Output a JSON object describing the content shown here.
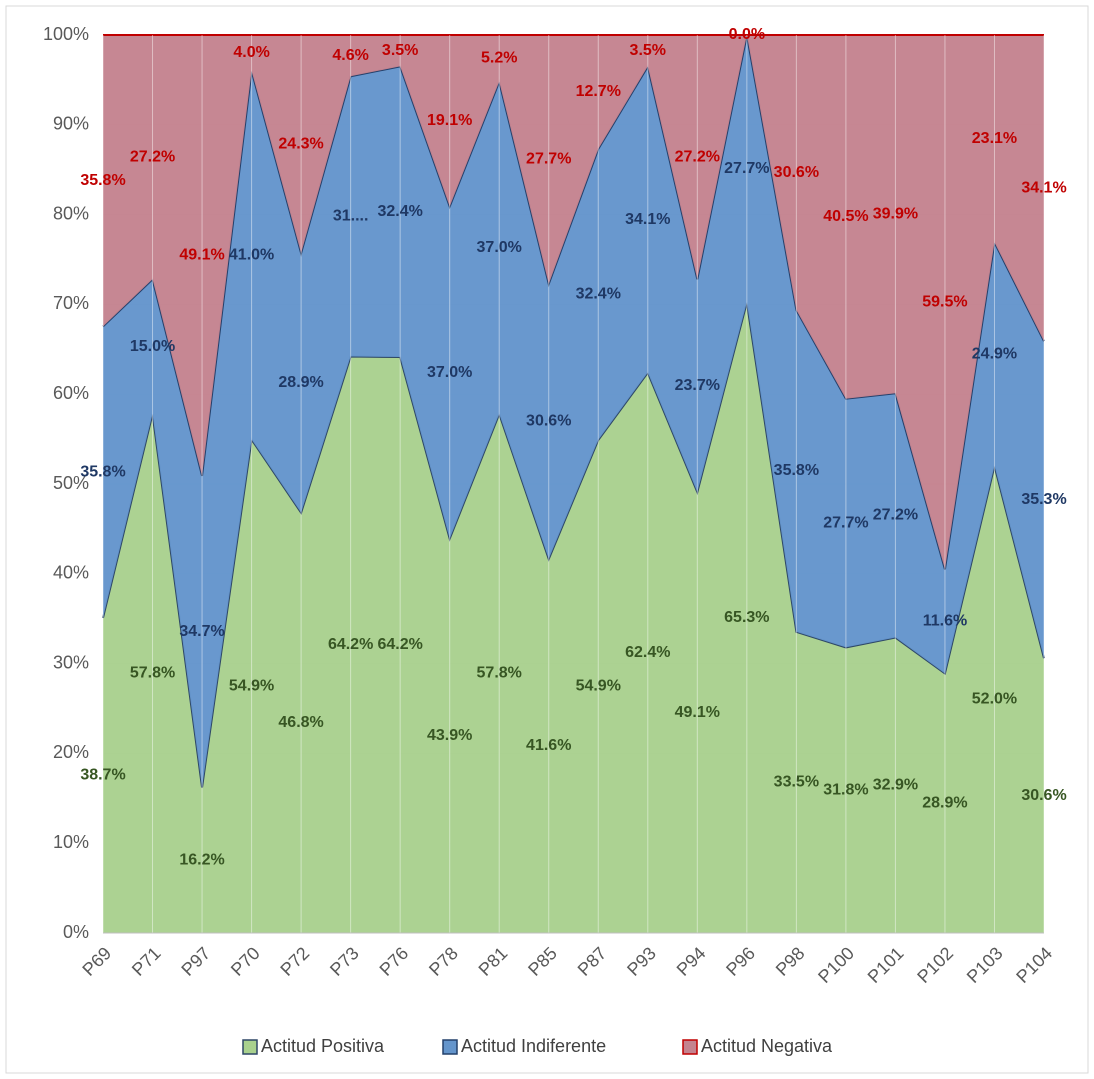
{
  "chart_data": {
    "type": "area",
    "stacking": "percent",
    "categories": [
      "P69",
      "P71",
      "P97",
      "P70",
      "P72",
      "P73",
      "P76",
      "P78",
      "P81",
      "P85",
      "P87",
      "P93",
      "P94",
      "P96",
      "P98",
      "P100",
      "P101",
      "P102",
      "P103",
      "P104"
    ],
    "series": [
      {
        "name": "Actitud Positiva",
        "color": "#a9d18e",
        "line_color": "#2e4766",
        "label_color": "#375623",
        "values": [
          38.7,
          57.8,
          16.2,
          54.9,
          46.8,
          64.2,
          64.2,
          43.9,
          57.8,
          41.6,
          54.9,
          62.4,
          49.1,
          65.3,
          33.5,
          31.8,
          32.9,
          28.9,
          52.0,
          30.6
        ],
        "value_labels": [
          "38.7%",
          "57.8%",
          "16.2%",
          "54.9%",
          "46.8%",
          "64.2%",
          "64.2%",
          "43.9%",
          "57.8%",
          "41.6%",
          "54.9%",
          "62.4%",
          "49.1%",
          "65.3%",
          "33.5%",
          "31.8%",
          "32.9%",
          "28.9%",
          "52.0%",
          "30.6%"
        ]
      },
      {
        "name": "Actitud Indiferente",
        "color": "#6495cc",
        "line_color": "#24406b",
        "label_color": "#1f3864",
        "values": [
          35.8,
          15.0,
          34.7,
          41.0,
          28.9,
          31.2,
          32.4,
          37.0,
          37.0,
          30.6,
          32.4,
          34.1,
          23.7,
          27.7,
          35.8,
          27.7,
          27.2,
          11.6,
          24.9,
          35.3
        ],
        "value_labels": [
          "35.8%",
          "15.0%",
          "34.7%",
          "41.0%",
          "28.9%",
          "31....",
          "32.4%",
          "37.0%",
          "37.0%",
          "30.6%",
          "32.4%",
          "34.1%",
          "23.7%",
          "27.7%",
          "35.8%",
          "27.7%",
          "27.2%",
          "11.6%",
          "24.9%",
          "35.3%"
        ]
      },
      {
        "name": "Actitud Negativa",
        "color": "#c4838f",
        "line_color": "#c00000",
        "label_color": "#c00000",
        "values": [
          35.8,
          27.2,
          49.1,
          4.0,
          24.3,
          4.6,
          3.5,
          19.1,
          5.2,
          27.7,
          12.7,
          3.5,
          27.2,
          0.0,
          30.6,
          40.5,
          39.9,
          59.5,
          23.1,
          34.1
        ],
        "value_labels": [
          "35.8%",
          "27.2%",
          "49.1%",
          "4.0%",
          "24.3%",
          "4.6%",
          "3.5%",
          "19.1%",
          "5.2%",
          "27.7%",
          "12.7%",
          "3.5%",
          "27.2%",
          "0.0%",
          "30.6%",
          "40.5%",
          "39.9%",
          "59.5%",
          "23.1%",
          "34.1%"
        ]
      }
    ],
    "ylim": [
      0,
      100
    ],
    "yticks": [
      {
        "value": 0,
        "label": "0%"
      },
      {
        "value": 10,
        "label": "10%"
      },
      {
        "value": 20,
        "label": "20%"
      },
      {
        "value": 30,
        "label": "30%"
      },
      {
        "value": 40,
        "label": "40%"
      },
      {
        "value": 50,
        "label": "50%"
      },
      {
        "value": 60,
        "label": "60%"
      },
      {
        "value": 70,
        "label": "70%"
      },
      {
        "value": 80,
        "label": "80%"
      },
      {
        "value": 90,
        "label": "90%"
      },
      {
        "value": 100,
        "label": "100%"
      }
    ],
    "legend": "bottom"
  }
}
